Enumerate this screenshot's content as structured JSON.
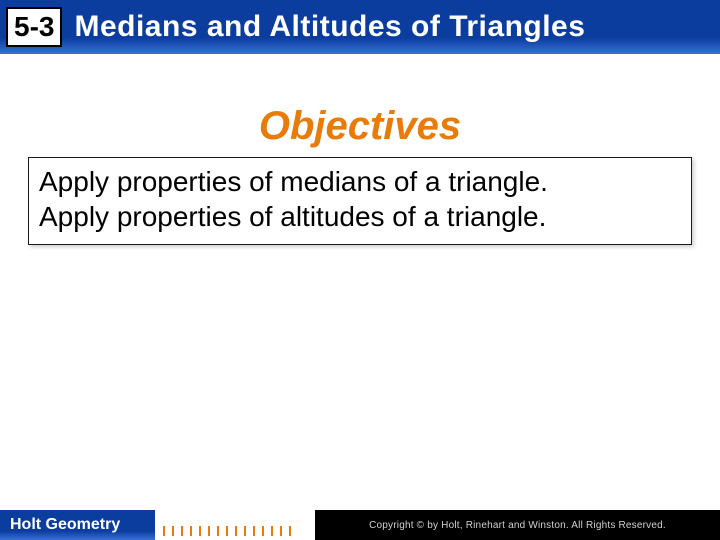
{
  "header": {
    "section_number": "5-3",
    "title": "Medians and Altitudes of Triangles",
    "bg_gradient_top": "#0a3d9e",
    "bg_gradient_bottom": "#3b6fd8",
    "title_color": "#ffffff"
  },
  "objectives": {
    "heading": "Objectives",
    "heading_color": "#e97b08",
    "items": [
      "Apply properties of medians of a triangle.",
      "Apply properties of altitudes of a triangle."
    ],
    "box_border": "#1a1a1a",
    "text_color": "#000000"
  },
  "footer": {
    "book_title": "Holt Geometry",
    "copyright": "Copyright © by Holt, Rinehart and Winston. All Rights Reserved.",
    "tick_color": "#e97b08",
    "right_bg": "#000000"
  }
}
